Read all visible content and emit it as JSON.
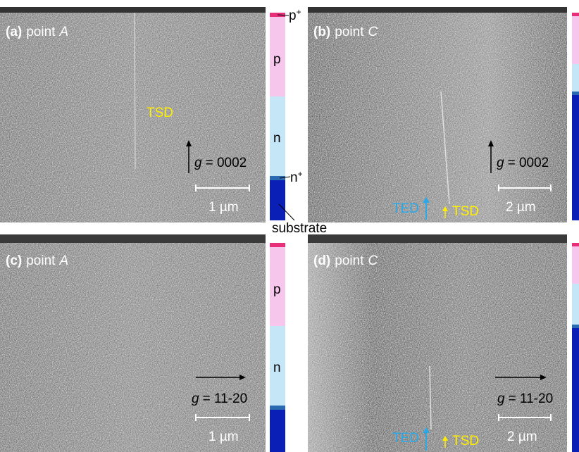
{
  "panels": [
    {
      "tag": "(a)",
      "word": "point",
      "site": "A",
      "g": "g",
      "g_value": "= 0002",
      "scale": "1 µm",
      "tsd": "TSD"
    },
    {
      "tag": "(b)",
      "word": "point",
      "site": "C",
      "g": "g",
      "g_value": "= 0002",
      "scale": "2 µm",
      "ted": "TED",
      "tsd": "TSD"
    },
    {
      "tag": "(c)",
      "word": "point",
      "site": "A",
      "g": "g",
      "g_value": "= 11-20",
      "scale": "1 µm"
    },
    {
      "tag": "(d)",
      "word": "point",
      "site": "C",
      "g": "g",
      "g_value": "= 11-20",
      "scale": "2 µm",
      "ted": "TED",
      "tsd": "TSD"
    }
  ],
  "layers": {
    "p_plus": {
      "base": "p",
      "sup": "+"
    },
    "p": "p",
    "n": "n",
    "n_plus": {
      "base": "n",
      "sup": "+"
    },
    "substrate": "substrate"
  }
}
